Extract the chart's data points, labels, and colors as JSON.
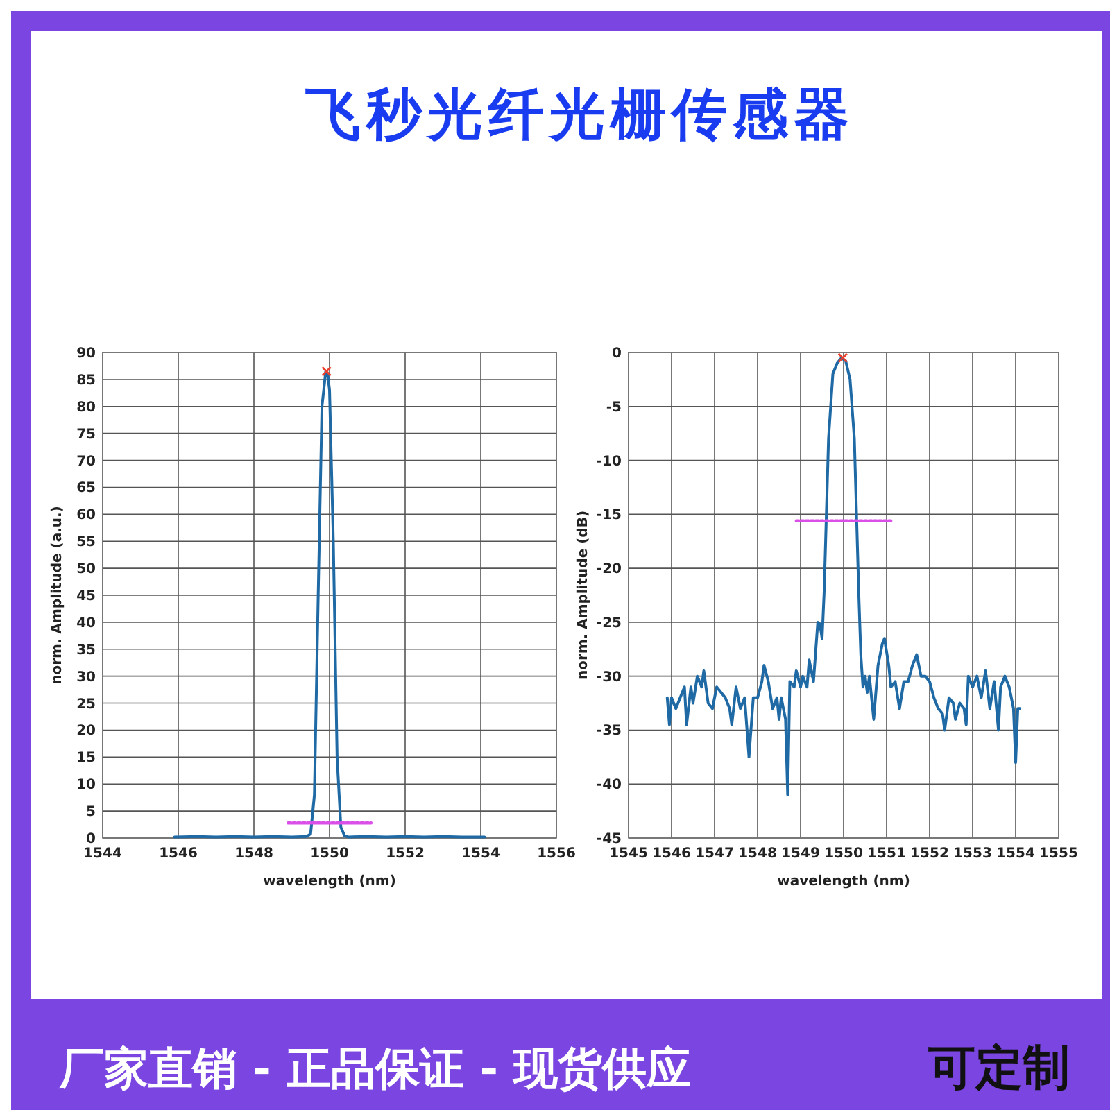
{
  "chart_data": [
    {
      "type": "other",
      "title": "飞秒光纤光栅传感器"
    },
    {
      "type": "line",
      "xlabel": "wavelength (nm)",
      "ylabel": "norm. Amplitude (a.u.)",
      "xlim": [
        1544,
        1556
      ],
      "xticks": [
        1544,
        1546,
        1548,
        1550,
        1552,
        1554,
        1556
      ],
      "ylim": [
        0,
        90
      ],
      "yticks": [
        0,
        5,
        10,
        15,
        20,
        25,
        30,
        35,
        40,
        45,
        50,
        55,
        60,
        65,
        70,
        75,
        80,
        85,
        90
      ],
      "grid": true,
      "series": [
        {
          "color": "#1f6aa5",
          "line_style": "solid",
          "x": [
            1545.9,
            1546.5,
            1547,
            1547.5,
            1548,
            1548.5,
            1549,
            1549.4,
            1549.5,
            1549.6,
            1549.7,
            1549.8,
            1549.9,
            1549.95,
            1550,
            1550.1,
            1550.2,
            1550.3,
            1550.4,
            1550.5,
            1551,
            1551.5,
            1552,
            1552.5,
            1553,
            1553.5,
            1554.1
          ],
          "values": [
            0.2,
            0.3,
            0.2,
            0.3,
            0.2,
            0.3,
            0.2,
            0.3,
            0.8,
            8,
            45,
            80,
            86.5,
            86,
            83,
            55,
            15,
            2,
            0.4,
            0.2,
            0.3,
            0.2,
            0.3,
            0.2,
            0.3,
            0.2,
            0.2
          ]
        },
        {
          "type": "line",
          "color": "#d94fe8",
          "line_style": "dotted",
          "x": [
            1548.9,
            1551.1
          ],
          "values": [
            2.8,
            2.8
          ]
        },
        {
          "type": "scatter",
          "color": "#e8402e",
          "marker": "cross",
          "x": [
            1549.92
          ],
          "values": [
            86.5
          ]
        }
      ]
    },
    {
      "type": "line",
      "xlabel": "wavelength (nm)",
      "ylabel": "norm. Amplitude (dB)",
      "xlim": [
        1545,
        1555
      ],
      "xticks": [
        1545,
        1546,
        1547,
        1548,
        1549,
        1550,
        1551,
        1552,
        1553,
        1554,
        1555
      ],
      "ylim": [
        -45,
        0
      ],
      "yticks": [
        -45,
        -40,
        -35,
        -30,
        -25,
        -20,
        -15,
        -10,
        -5,
        0
      ],
      "grid": true,
      "series": [
        {
          "color": "#1f6aa5",
          "line_style": "solid",
          "x": [
            1545.9,
            1545.95,
            1546,
            1546.1,
            1546.2,
            1546.3,
            1546.35,
            1546.45,
            1546.5,
            1546.6,
            1546.7,
            1546.75,
            1546.85,
            1546.95,
            1547.05,
            1547.15,
            1547.25,
            1547.35,
            1547.4,
            1547.5,
            1547.6,
            1547.7,
            1547.8,
            1547.9,
            1548,
            1548.1,
            1548.15,
            1548.25,
            1548.35,
            1548.45,
            1548.5,
            1548.55,
            1548.65,
            1548.7,
            1548.75,
            1548.85,
            1548.9,
            1549,
            1549.05,
            1549.15,
            1549.2,
            1549.3,
            1549.4,
            1549.45,
            1549.5,
            1549.55,
            1549.6,
            1549.65,
            1549.75,
            1549.85,
            1549.95,
            1550.05,
            1550.15,
            1550.25,
            1550.3,
            1550.35,
            1550.4,
            1550.45,
            1550.5,
            1550.55,
            1550.6,
            1550.7,
            1550.8,
            1550.9,
            1550.95,
            1551.05,
            1551.1,
            1551.2,
            1551.3,
            1551.4,
            1551.5,
            1551.6,
            1551.7,
            1551.8,
            1551.9,
            1552,
            1552.1,
            1552.2,
            1552.3,
            1552.35,
            1552.45,
            1552.55,
            1552.6,
            1552.7,
            1552.8,
            1552.85,
            1552.9,
            1553,
            1553.1,
            1553.2,
            1553.3,
            1553.4,
            1553.5,
            1553.6,
            1553.65,
            1553.75,
            1553.85,
            1553.95,
            1554,
            1554.05,
            1554.1
          ],
          "values": [
            -32,
            -34.5,
            -32,
            -33,
            -32,
            -31,
            -34.5,
            -31,
            -32.5,
            -30,
            -31,
            -29.5,
            -32.5,
            -33,
            -31,
            -31.5,
            -32,
            -33,
            -34.5,
            -31,
            -33,
            -32,
            -37.5,
            -32,
            -32,
            -30.5,
            -29,
            -30.5,
            -33,
            -32,
            -34,
            -32,
            -34,
            -41,
            -30.5,
            -31,
            -29.5,
            -31,
            -30,
            -31,
            -28.5,
            -30.5,
            -25,
            -25.2,
            -26.5,
            -22,
            -15,
            -8,
            -2,
            -1,
            -0.5,
            -0.8,
            -2.5,
            -8,
            -15,
            -22,
            -28,
            -31,
            -30,
            -31.5,
            -30,
            -34,
            -29,
            -27,
            -26.5,
            -29,
            -31,
            -30.5,
            -33,
            -30.5,
            -30.5,
            -29,
            -28,
            -30,
            -30,
            -30.5,
            -32,
            -33,
            -33.5,
            -35,
            -32,
            -32.5,
            -34,
            -32.5,
            -33,
            -34.5,
            -30,
            -31,
            -30,
            -32,
            -29.5,
            -33,
            -30.5,
            -35,
            -31,
            -30,
            -31,
            -33,
            -38,
            -33,
            -33
          ]
        },
        {
          "type": "line",
          "color": "#d94fe8",
          "line_style": "dotted",
          "x": [
            1548.9,
            1551.1
          ],
          "values": [
            -15.6,
            -15.6
          ]
        },
        {
          "type": "scatter",
          "color": "#e8402e",
          "marker": "cross",
          "x": [
            1549.98
          ],
          "values": [
            -0.5
          ]
        }
      ]
    },
    {
      "type": "other",
      "annotations": [
        "厂家直销 - 正品保证 - 现货供应",
        "可定制"
      ]
    }
  ]
}
